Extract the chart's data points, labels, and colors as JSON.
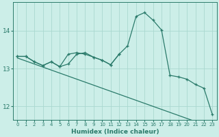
{
  "xlabel": "Humidex (Indice chaleur)",
  "bg_color": "#cceee8",
  "grid_color": "#aad8d0",
  "line_color": "#2a7a6a",
  "xlim": [
    -0.5,
    23.5
  ],
  "ylim": [
    11.65,
    14.75
  ],
  "yticks": [
    12,
    13,
    14
  ],
  "xtick_labels": [
    "0",
    "1",
    "2",
    "3",
    "4",
    "5",
    "6",
    "7",
    "8",
    "9",
    "10",
    "11",
    "12",
    "13",
    "14",
    "15",
    "16",
    "17",
    "18",
    "19",
    "20",
    "21",
    "22",
    "23"
  ],
  "line1_x": [
    0,
    1,
    2,
    3,
    4,
    5,
    6,
    7,
    8,
    9,
    10,
    11,
    12,
    13,
    14,
    15,
    16,
    17,
    18,
    19,
    20,
    21,
    22,
    23
  ],
  "line1_y": [
    13.32,
    13.32,
    13.18,
    13.08,
    13.18,
    13.05,
    13.38,
    13.42,
    13.38,
    13.3,
    13.22,
    13.1,
    13.38,
    13.6,
    14.38,
    14.48,
    14.28,
    14.02,
    12.82,
    12.78,
    12.72,
    12.58,
    12.48,
    11.78
  ],
  "line2_x": [
    0,
    1,
    2,
    3,
    4,
    5,
    6,
    7,
    8,
    9,
    10,
    11,
    12
  ],
  "line2_y": [
    13.32,
    13.32,
    13.18,
    13.08,
    13.18,
    13.05,
    13.12,
    13.38,
    13.42,
    13.3,
    13.22,
    13.1,
    13.38
  ],
  "line3_x": [
    0,
    1,
    2,
    3,
    4,
    5,
    6,
    7,
    8,
    9,
    10,
    11,
    12,
    13,
    14,
    15,
    16,
    17,
    18,
    19,
    20,
    21,
    22,
    23
  ],
  "line3_y": [
    13.28,
    13.2,
    13.12,
    13.04,
    12.96,
    12.88,
    12.8,
    12.72,
    12.64,
    12.56,
    12.48,
    12.4,
    12.32,
    12.24,
    12.16,
    12.08,
    12.0,
    11.92,
    11.84,
    11.76,
    11.68,
    11.6,
    11.52,
    11.44
  ]
}
